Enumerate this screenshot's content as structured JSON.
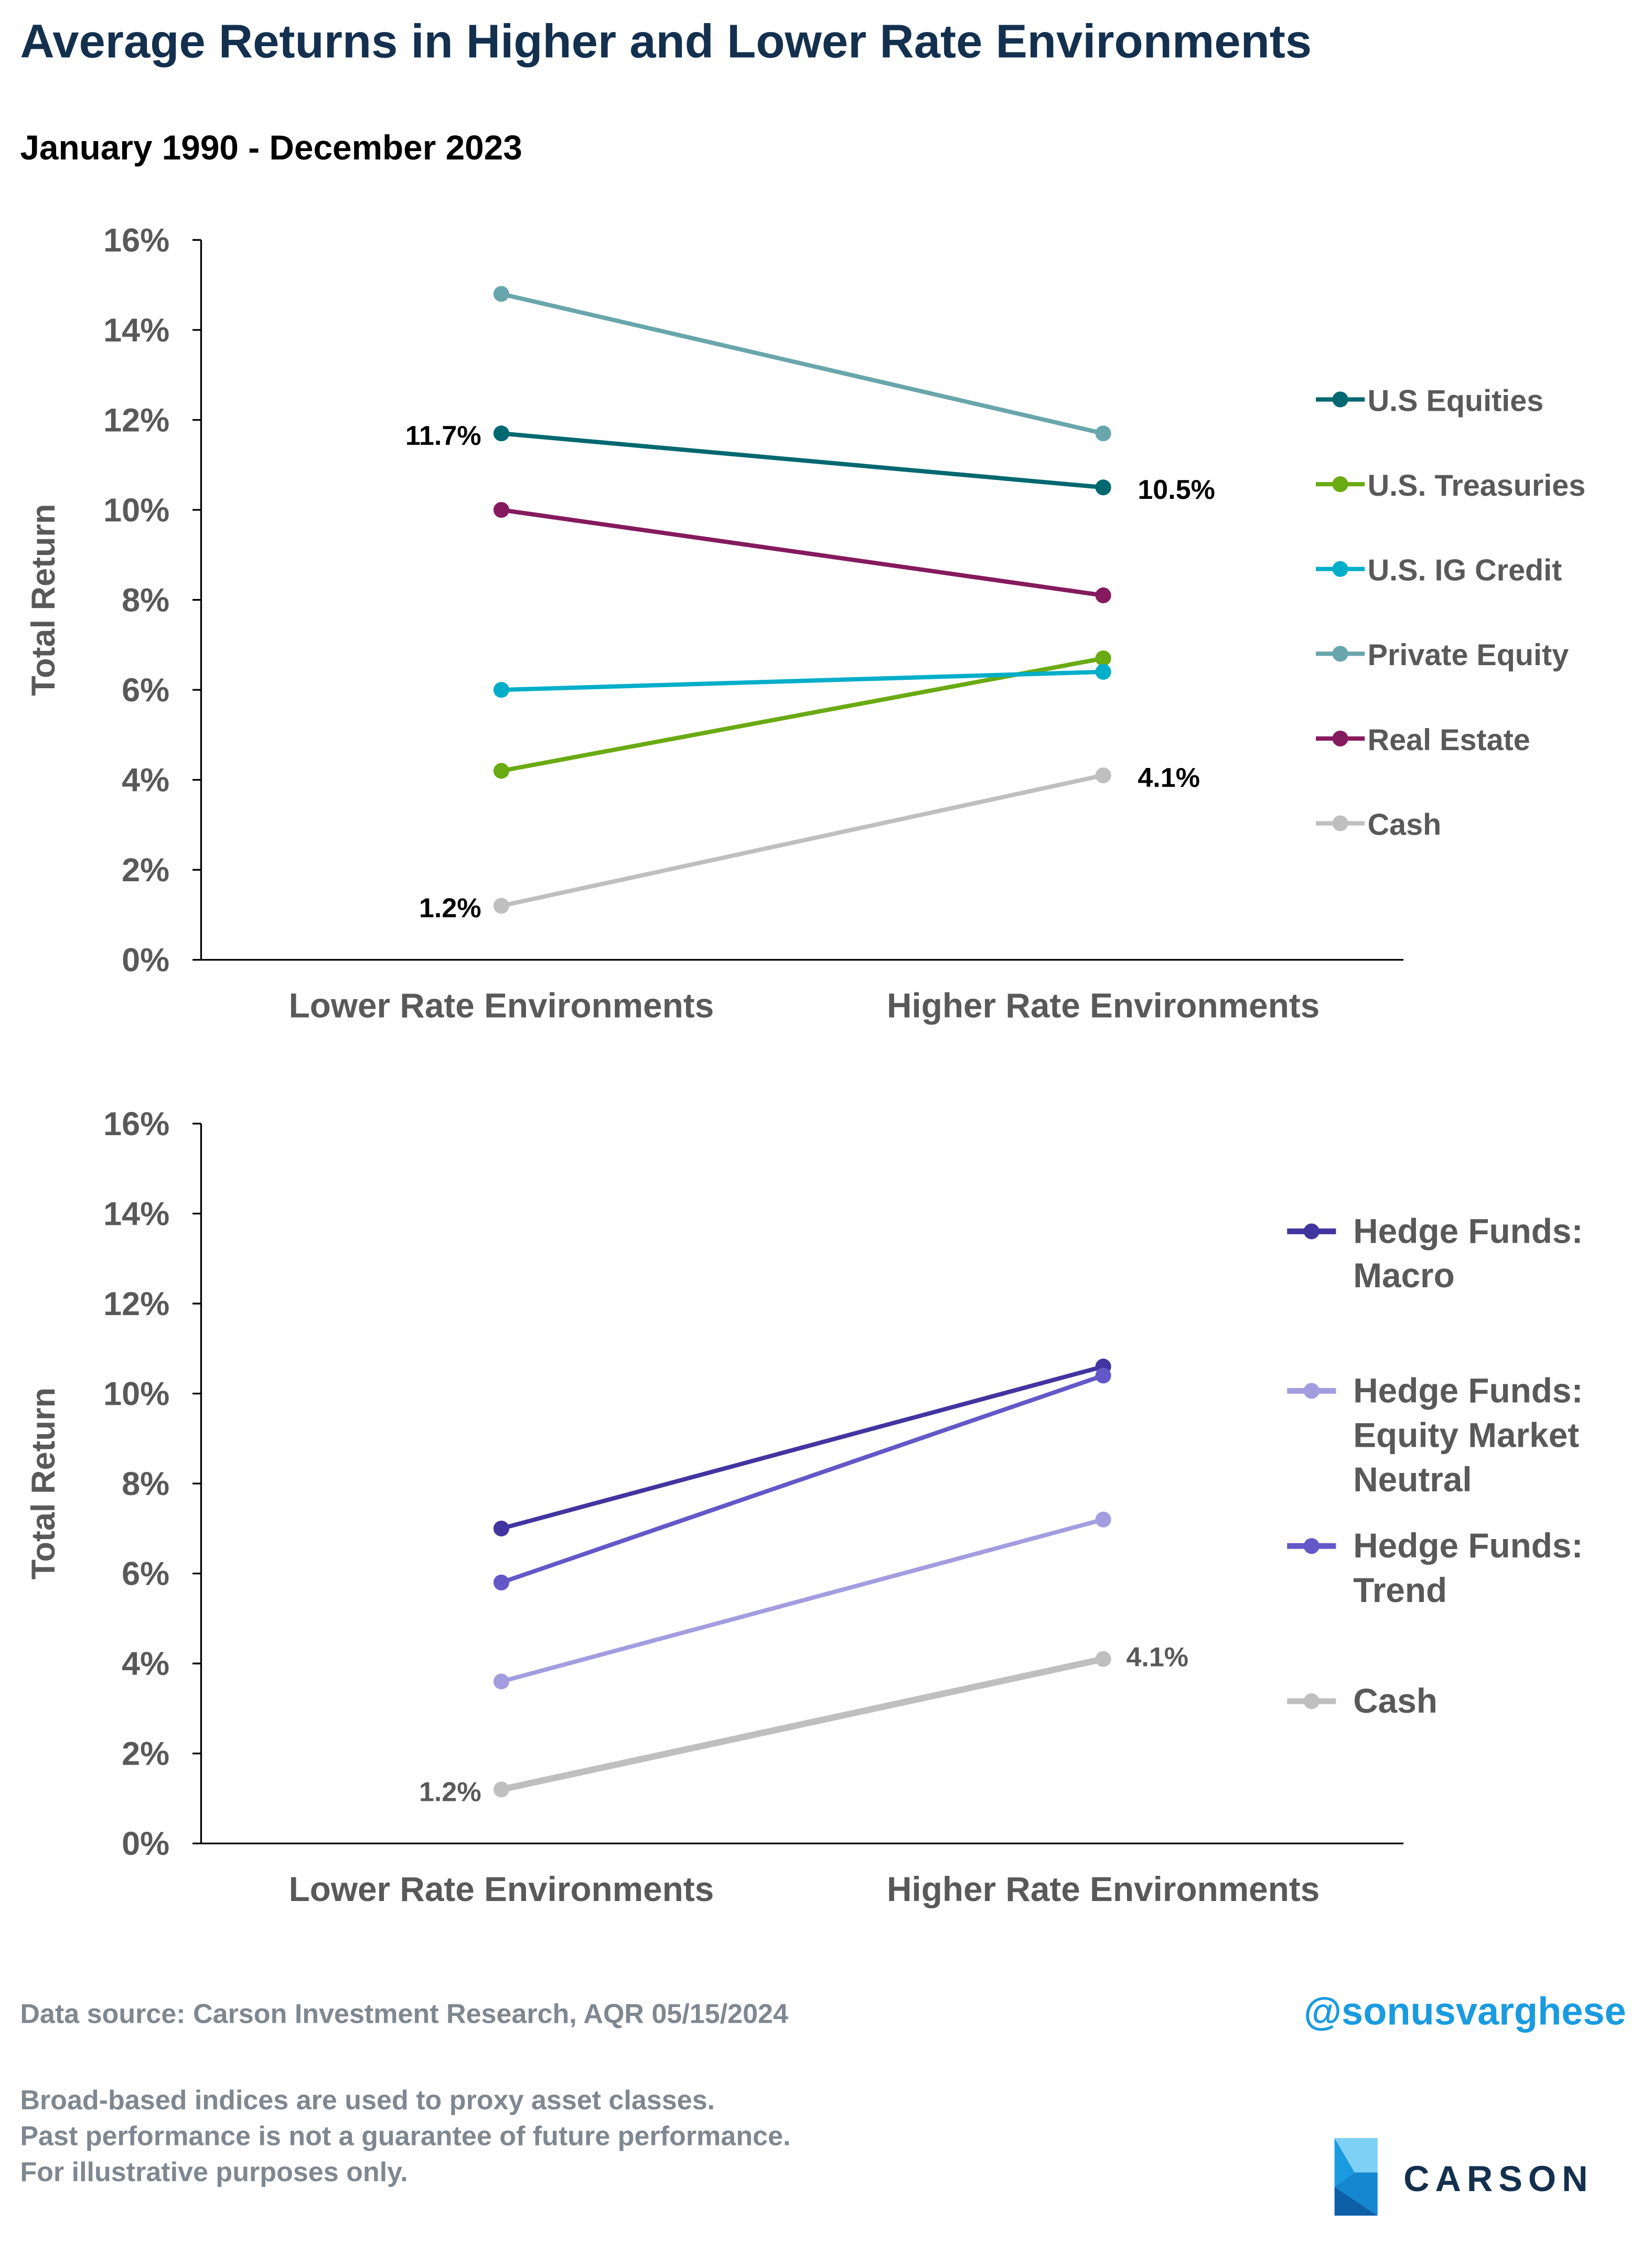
{
  "title": "Average Returns in Higher and Lower Rate Environments",
  "subtitle": "January 1990 - December 2023",
  "footer": {
    "source": "Data source: Carson Investment Research, AQR   05/15/2024",
    "handle": "@sonusvarghese",
    "disclaimers": [
      "Broad-based indices are used to proxy asset classes.",
      "Past performance is not a guarantee of future performance.",
      "For illustrative purposes only."
    ],
    "logo_text": "CARSON"
  },
  "chart_data": [
    {
      "type": "line",
      "ylabel": "Total Return",
      "ylim": [
        0,
        16
      ],
      "yticks": [
        "0%",
        "2%",
        "4%",
        "6%",
        "8%",
        "10%",
        "12%",
        "14%",
        "16%"
      ],
      "categories": [
        "Lower Rate Environments",
        "Higher Rate Environments"
      ],
      "legend": "right",
      "series": [
        {
          "name": "U.S Equities",
          "values": [
            11.7,
            10.5
          ],
          "color": "#006870",
          "labels": [
            "11.7%",
            "10.5%"
          ]
        },
        {
          "name": "U.S. Treasuries",
          "values": [
            4.2,
            6.7
          ],
          "color": "#6aaa12"
        },
        {
          "name": "U.S. IG Credit",
          "values": [
            6.0,
            6.4
          ],
          "color": "#00aec9"
        },
        {
          "name": "Private Equity",
          "values": [
            14.8,
            11.7
          ],
          "color": "#68a6ac"
        },
        {
          "name": "Real Estate",
          "values": [
            10.0,
            8.1
          ],
          "color": "#851a5e"
        },
        {
          "name": "Cash",
          "values": [
            1.2,
            4.1
          ],
          "color": "#bfbfbf",
          "labels": [
            "1.2%",
            "4.1%"
          ]
        }
      ]
    },
    {
      "type": "line",
      "ylabel": "Total Return",
      "ylim": [
        0,
        16
      ],
      "yticks": [
        "0%",
        "2%",
        "4%",
        "6%",
        "8%",
        "10%",
        "12%",
        "14%",
        "16%"
      ],
      "categories": [
        "Lower Rate Environments",
        "Higher Rate Environments"
      ],
      "legend": "right",
      "series": [
        {
          "name": "Hedge Funds: Macro",
          "legend_lines": [
            "Hedge Funds:",
            "Macro"
          ],
          "values": [
            7.0,
            10.6
          ],
          "color": "#4235a0"
        },
        {
          "name": "Hedge Funds: Equity Market Neutral",
          "legend_lines": [
            "Hedge Funds:",
            "Equity Market",
            "Neutral"
          ],
          "values": [
            3.6,
            7.2
          ],
          "color": "#a39de0"
        },
        {
          "name": "Hedge Funds: Trend",
          "legend_lines": [
            "Hedge Funds:",
            "Trend"
          ],
          "values": [
            5.8,
            10.4
          ],
          "color": "#6458c8"
        },
        {
          "name": "Cash",
          "legend_lines": [
            "Cash"
          ],
          "values": [
            1.2,
            4.1
          ],
          "color": "#bfbfbf",
          "labels": [
            "1.2%",
            "4.1%"
          ]
        }
      ]
    }
  ]
}
